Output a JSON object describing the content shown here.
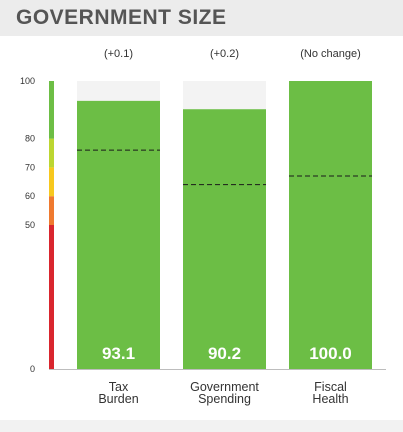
{
  "header": {
    "title": "GOVERNMENT SIZE"
  },
  "chart_data": {
    "type": "bar",
    "title": "GOVERNMENT SIZE",
    "ylim": [
      0,
      100
    ],
    "yticks": [
      0,
      50,
      60,
      70,
      80,
      100
    ],
    "categories": [
      {
        "lines": [
          "Tax",
          "Burden"
        ],
        "value": 93.1,
        "value_label": "93.1",
        "change": "(+0.1)",
        "reference": 76
      },
      {
        "lines": [
          "Government",
          "Spending"
        ],
        "value": 90.2,
        "value_label": "90.2",
        "change": "(+0.2)",
        "reference": 64
      },
      {
        "lines": [
          "Fiscal",
          "Health"
        ],
        "value": 100.0,
        "value_label": "100.0",
        "change": "(No change)",
        "reference": 67
      }
    ],
    "scale_bands": [
      {
        "from": 0,
        "to": 50,
        "color": "#d9262e"
      },
      {
        "from": 50,
        "to": 60,
        "color": "#ef7a2f"
      },
      {
        "from": 60,
        "to": 70,
        "color": "#f7c81e"
      },
      {
        "from": 70,
        "to": 80,
        "color": "#bcd631"
      },
      {
        "from": 80,
        "to": 100,
        "color": "#6dbe45"
      }
    ],
    "colors": {
      "bar": "#6cbe45",
      "track": "#f3f3f3",
      "reference_line": "#1a1a1a"
    },
    "grid": false,
    "legend": "none"
  }
}
